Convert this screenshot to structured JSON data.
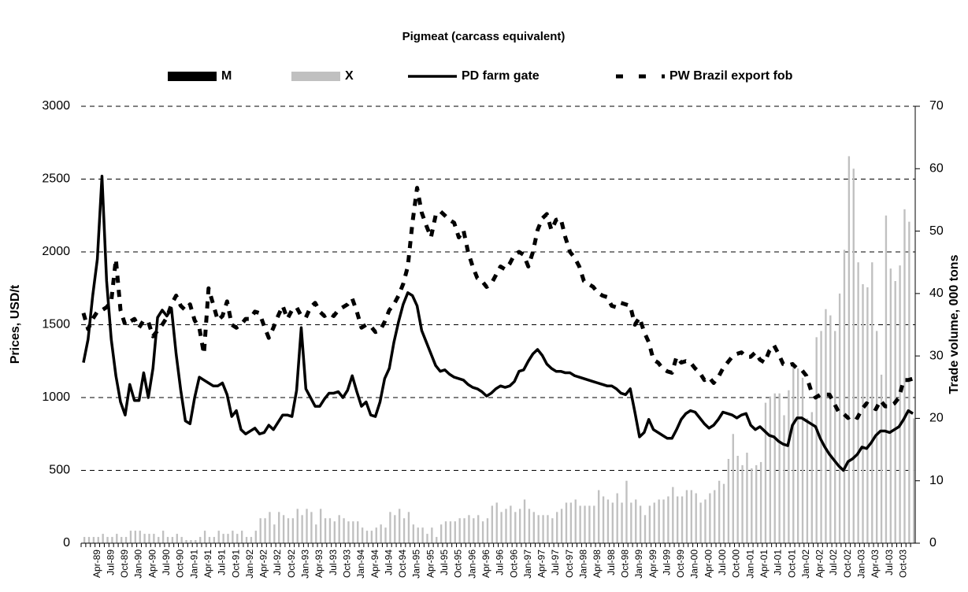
{
  "chart_data": {
    "type": "bar_line",
    "title": "Pigmeat (carcass equivalent)",
    "y_label": "Prices, USD/t",
    "y2_label": "Trade volume, 000 tons",
    "legend": "top",
    "grid": true,
    "ylim": [
      0,
      3000
    ],
    "yticks": [
      0,
      500,
      1000,
      1500,
      2000,
      2500,
      3000
    ],
    "y2lim": [
      0,
      70
    ],
    "y2ticks": [
      0,
      10,
      20,
      30,
      40,
      50,
      60,
      70
    ],
    "categories": [
      null,
      null,
      null,
      "Apr-89",
      null,
      null,
      "Jul-89",
      null,
      null,
      "Oct-89",
      null,
      null,
      "Jan-90",
      null,
      null,
      "Apr-90",
      null,
      null,
      "Jul-90",
      null,
      null,
      "Oct-90",
      null,
      null,
      "Jan-91",
      null,
      null,
      "Apr-91",
      null,
      null,
      "Jul-91",
      null,
      null,
      "Oct-91",
      null,
      null,
      "Jan-92",
      null,
      null,
      "Apr-92",
      null,
      null,
      "Jul-92",
      null,
      null,
      "Oct-92",
      null,
      null,
      "Jan-93",
      null,
      null,
      "Apr-93",
      null,
      null,
      "Jul-93",
      null,
      null,
      "Oct-93",
      null,
      null,
      "Jan-94",
      null,
      null,
      "Apr-94",
      null,
      null,
      "Jul-94",
      null,
      null,
      "Oct-94",
      null,
      null,
      "Jan-95",
      null,
      null,
      "Apr-95",
      null,
      null,
      "Jul-95",
      null,
      null,
      "Oct-95",
      null,
      null,
      "Jan-96",
      null,
      null,
      "Apr-96",
      null,
      null,
      "Jul-96",
      null,
      null,
      "Oct-96",
      null,
      null,
      "Jan-97",
      null,
      null,
      "Apr-97",
      null,
      null,
      "Jul-97",
      null,
      null,
      "Oct-97",
      null,
      null,
      "Jan-98",
      null,
      null,
      "Apr-98",
      null,
      null,
      "Jul-98",
      null,
      null,
      "Oct-98",
      null,
      null,
      "Jan-99",
      null,
      null,
      "Apr-99",
      null,
      null,
      "Jul-99",
      null,
      null,
      "Oct-99",
      null,
      null,
      "Jan-00",
      null,
      null,
      "Apr-00",
      null,
      null,
      "Jul-00",
      null,
      null,
      "Oct-00",
      null,
      null,
      "Jan-01",
      null,
      null,
      "Apr-01",
      null,
      null,
      "Jul-01",
      null,
      null,
      "Oct-01",
      null,
      null,
      "Jan-02",
      null,
      null,
      "Apr-02",
      null,
      null,
      "Jul-02",
      null,
      null,
      "Oct-02",
      null,
      null,
      "Jan-03",
      null,
      null,
      "Apr-03",
      null,
      null,
      "Jul-03",
      null,
      null,
      "Oct-03",
      null,
      null
    ],
    "series": [
      {
        "name": "M",
        "kind": "bar",
        "axis": "y2",
        "color": "#000000",
        "values": [
          0,
          0,
          0,
          0,
          0,
          0,
          0,
          0,
          0,
          0,
          0,
          0,
          0,
          0,
          0,
          0,
          0,
          0,
          0,
          0,
          0,
          0,
          0,
          0,
          0,
          0,
          0,
          0,
          0,
          0,
          0,
          0,
          0,
          0,
          0,
          0,
          0,
          0,
          0,
          0,
          0,
          0,
          0,
          0,
          0,
          0,
          0,
          0,
          0,
          0,
          0,
          0,
          0,
          0,
          0,
          0,
          0,
          0,
          0,
          0,
          0,
          0,
          0,
          0,
          0,
          0,
          0,
          0,
          0,
          0,
          0,
          0,
          0,
          0,
          0,
          0,
          0,
          0,
          0,
          0,
          0,
          0,
          0,
          0,
          0,
          0,
          0,
          0,
          0,
          0,
          0,
          0,
          0,
          0,
          0,
          0,
          0,
          0,
          0,
          0,
          0,
          0,
          0,
          0,
          0,
          0,
          0,
          0,
          0,
          0,
          0,
          0,
          0,
          0,
          0,
          0,
          0,
          0,
          0,
          0,
          0,
          0,
          0,
          0,
          0,
          0,
          0,
          0,
          0,
          0,
          0,
          0,
          0,
          0,
          0,
          0,
          0,
          0,
          0,
          0,
          0,
          0,
          0,
          0,
          0,
          0,
          0,
          0,
          0,
          0,
          0,
          0,
          0,
          0,
          0,
          0,
          0,
          0,
          0,
          0,
          0,
          0,
          0,
          0,
          0,
          0,
          0,
          0,
          0,
          0,
          0,
          0,
          0,
          0,
          0,
          0,
          0,
          0,
          0,
          0
        ]
      },
      {
        "name": "X",
        "kind": "bar",
        "axis": "y2",
        "color": "#c0c0c0",
        "values": [
          1,
          1,
          1,
          1,
          1.5,
          1,
          1,
          1.5,
          1,
          1,
          2,
          2,
          2,
          1.5,
          1.5,
          1.5,
          1,
          2,
          1,
          1,
          1.5,
          1,
          0.5,
          0.5,
          0.5,
          1,
          2,
          1,
          1,
          2,
          1.5,
          1.5,
          2,
          1.5,
          2,
          1,
          1,
          2,
          4,
          4,
          5,
          3,
          5,
          4.5,
          4,
          4,
          5.5,
          4.5,
          5.5,
          5,
          3,
          5.5,
          4,
          4,
          3.5,
          4.5,
          4,
          3.5,
          3.5,
          3.5,
          2.5,
          2,
          2,
          2.5,
          3,
          2.5,
          5,
          4.5,
          5.5,
          4,
          5,
          3,
          2.5,
          2.5,
          1.5,
          2.5,
          1,
          3,
          3.5,
          3.5,
          3.5,
          4,
          4,
          4.5,
          4,
          4.5,
          3.5,
          4,
          6,
          6.5,
          5,
          5.5,
          6,
          5,
          5.5,
          7,
          5.5,
          5,
          4.5,
          4.5,
          4.5,
          4,
          5,
          5.5,
          6.5,
          6.5,
          7,
          6,
          6,
          6,
          6,
          8.5,
          7.5,
          7,
          6.5,
          8,
          6.5,
          10,
          6.5,
          7,
          6,
          4.5,
          6,
          6.5,
          7,
          7,
          7.5,
          9,
          7.5,
          7.5,
          8.5,
          8.5,
          8,
          6.5,
          7,
          8,
          8.5,
          10,
          9.5,
          13.5,
          17.5,
          14,
          12.5,
          14.5,
          12,
          12.5,
          13,
          22.5,
          23.5,
          24,
          24,
          20.5,
          24.5,
          29,
          28,
          26.5,
          20,
          21,
          33,
          34,
          37.5,
          36.5,
          34,
          40,
          47,
          62,
          60,
          45,
          41.5,
          41,
          45,
          34,
          27,
          52.5,
          44,
          42,
          44.5,
          53.5,
          51.5,
          20
        ]
      },
      {
        "name": "PD farm gate",
        "kind": "line",
        "line_style": "solid",
        "color": "#000000",
        "values": [
          1240,
          1400,
          1700,
          1950,
          2520,
          1800,
          1400,
          1150,
          970,
          880,
          1090,
          980,
          980,
          1170,
          1000,
          1200,
          1550,
          1600,
          1560,
          1610,
          1300,
          1050,
          840,
          820,
          1000,
          1140,
          1120,
          1100,
          1080,
          1080,
          1100,
          1020,
          870,
          910,
          780,
          750,
          770,
          790,
          750,
          760,
          810,
          780,
          830,
          880,
          880,
          870,
          1050,
          1480,
          1060,
          1000,
          940,
          940,
          990,
          1030,
          1030,
          1040,
          1000,
          1050,
          1150,
          1040,
          940,
          970,
          880,
          870,
          970,
          1130,
          1200,
          1380,
          1520,
          1640,
          1720,
          1700,
          1630,
          1460,
          1380,
          1300,
          1220,
          1180,
          1190,
          1160,
          1140,
          1130,
          1120,
          1090,
          1070,
          1060,
          1040,
          1010,
          1030,
          1060,
          1080,
          1070,
          1080,
          1110,
          1180,
          1190,
          1250,
          1300,
          1330,
          1290,
          1230,
          1200,
          1180,
          1180,
          1170,
          1170,
          1150,
          1140,
          1130,
          1120,
          1110,
          1100,
          1090,
          1080,
          1080,
          1060,
          1030,
          1020,
          1060,
          900,
          730,
          760,
          850,
          780,
          760,
          740,
          720,
          720,
          780,
          850,
          890,
          910,
          900,
          860,
          820,
          790,
          810,
          850,
          900,
          890,
          880,
          860,
          880,
          890,
          810,
          780,
          800,
          770,
          740,
          730,
          700,
          680,
          670,
          810,
          860,
          860,
          840,
          820,
          800,
          720,
          660,
          610,
          570,
          530,
          500,
          560,
          580,
          610,
          660,
          650,
          690,
          740,
          770,
          770,
          760,
          780,
          800,
          850,
          910,
          890
        ]
      },
      {
        "name": "PW Brazil export fob",
        "kind": "line",
        "line_style": "dashed",
        "color": "#000000",
        "values": [
          1580,
          1470,
          1540,
          1590,
          1600,
          1620,
          1660,
          1950,
          1600,
          1500,
          1520,
          1540,
          1480,
          1530,
          1520,
          1420,
          1460,
          1500,
          1550,
          1640,
          1700,
          1630,
          1600,
          1640,
          1530,
          1480,
          1300,
          1750,
          1640,
          1530,
          1560,
          1660,
          1500,
          1480,
          1500,
          1540,
          1540,
          1590,
          1580,
          1490,
          1410,
          1480,
          1560,
          1630,
          1540,
          1600,
          1620,
          1560,
          1550,
          1620,
          1650,
          1590,
          1560,
          1580,
          1560,
          1600,
          1620,
          1640,
          1680,
          1590,
          1480,
          1500,
          1490,
          1450,
          1460,
          1520,
          1600,
          1640,
          1700,
          1780,
          1900,
          2200,
          2440,
          2270,
          2180,
          2100,
          2250,
          2280,
          2250,
          2220,
          2200,
          2100,
          2150,
          2000,
          1900,
          1820,
          1800,
          1760,
          1780,
          1840,
          1900,
          1880,
          1920,
          1980,
          2000,
          1980,
          1900,
          2000,
          2150,
          2230,
          2260,
          2150,
          2220,
          2230,
          2100,
          2000,
          1960,
          1900,
          1800,
          1780,
          1760,
          1720,
          1700,
          1690,
          1630,
          1620,
          1650,
          1640,
          1630,
          1500,
          1550,
          1450,
          1380,
          1260,
          1240,
          1200,
          1180,
          1170,
          1280,
          1240,
          1250,
          1240,
          1200,
          1170,
          1120,
          1140,
          1100,
          1140,
          1200,
          1240,
          1280,
          1300,
          1310,
          1280,
          1280,
          1310,
          1260,
          1240,
          1320,
          1360,
          1300,
          1230,
          1220,
          1230,
          1200,
          1190,
          1150,
          1050,
          1000,
          1020,
          1020,
          1020,
          960,
          900,
          890,
          860,
          880,
          860,
          920,
          960,
          940,
          920,
          980,
          940,
          940,
          960,
          1000,
          1120,
          1120,
          1130
        ]
      }
    ]
  }
}
